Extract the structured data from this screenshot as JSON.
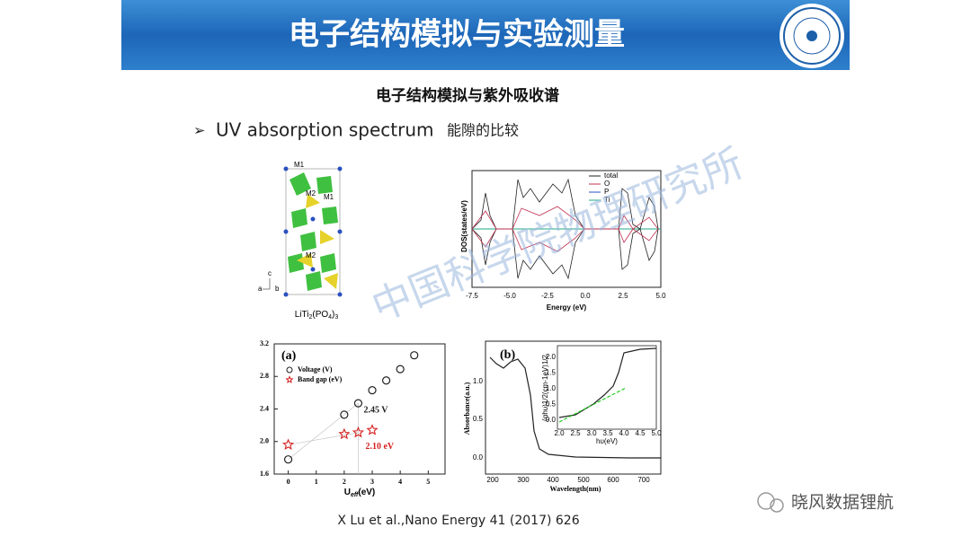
{
  "header": {
    "title": "电子结构模拟与实验测量"
  },
  "subtitle": "电子结构模拟与紫外吸收谱",
  "bullet": {
    "text": "UV absorption spectrum",
    "note": "能隙的比较"
  },
  "structure": {
    "labels": [
      "M1",
      "M2",
      "M1",
      "M2"
    ],
    "axes": [
      "c",
      "a",
      "b"
    ],
    "caption": [
      "LiTi",
      "2",
      "(PO",
      "4",
      ")",
      "3"
    ]
  },
  "dos": {
    "legend": [
      "total",
      "O",
      "P",
      "Ti"
    ],
    "ylabel": "DOS(states/eV)",
    "xlabel": "Energy (eV)",
    "xticks": [
      "-7.5",
      "-5.0",
      "-2.5",
      "0.0",
      "2.5",
      "5.0"
    ]
  },
  "chart_data": {
    "type": "scatter",
    "panel": "(a)",
    "xlabel": [
      "U",
      "eff",
      "(eV)"
    ],
    "series": [
      {
        "name": "Voltage (V)",
        "color": "#222222",
        "x": [
          0,
          2,
          2.5,
          3,
          3.5,
          4,
          4.5
        ],
        "values": [
          1.78,
          2.33,
          2.47,
          2.63,
          2.75,
          2.89,
          3.06
        ]
      },
      {
        "name": "Band gap (eV)",
        "color": "#d62020",
        "x": [
          0,
          2,
          2.5,
          3
        ],
        "values": [
          1.96,
          2.09,
          2.11,
          2.14
        ]
      }
    ],
    "annotations": [
      "2.45 V",
      "2.10 eV"
    ],
    "xlim": [
      -0.5,
      5.6
    ],
    "xticks": [
      0,
      1,
      2,
      3,
      4,
      5
    ],
    "ylim": [
      1.6,
      3.2
    ],
    "yticks": [
      1.6,
      {
        "value": 2,
        "label": "2.0"
      },
      2.4,
      2.8,
      3.2
    ]
  },
  "chart_b": {
    "panel": "(b)",
    "ylabel": "Absorbance(a.u.)",
    "xlabel": "Wavelength(nm)",
    "xticks": [
      "200",
      "300",
      "400",
      "500",
      "600",
      "700"
    ],
    "yticks": [
      "0.0",
      "0.5",
      "1.0"
    ],
    "inset": {
      "xlabel": "hυ(eV)",
      "ylabel": "(αhυ)1/2(cm-1eV)1/2",
      "xticks": [
        "2.0",
        "2.5",
        "3.0",
        "3.5",
        "4.0",
        "4.5",
        "5.0"
      ],
      "yticks": [
        "0.0",
        "0.5",
        "1.0",
        "1.5",
        "2.0"
      ]
    }
  },
  "citation": "X Lu et al.,Nano Energy 41 (2017) 626",
  "watermark": "中国科学院物理研究所",
  "wechat": "晓风数据锂航"
}
